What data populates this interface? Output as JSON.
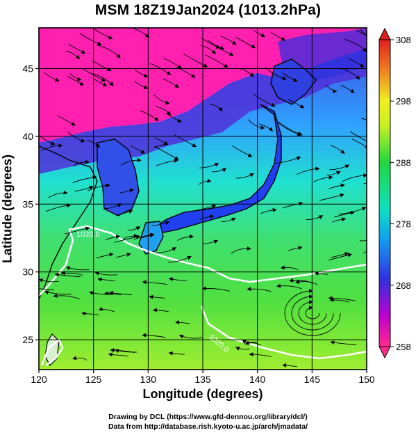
{
  "title": "MSM 18Z19Jan2024 (1013.2hPa)",
  "map": {
    "xlabel": "Longitude (degrees)",
    "ylabel": "Latitude  (degrees)",
    "lon_range": [
      120,
      150
    ],
    "lat_range": [
      22.8,
      48
    ],
    "lon_ticks": [
      "120",
      "125",
      "130",
      "135",
      "140",
      "145",
      "150"
    ],
    "lat_ticks": [
      "25",
      "30",
      "35",
      "40",
      "45"
    ],
    "contour_labels": [
      "1020.0",
      "1020.0"
    ],
    "gridlines": true
  },
  "colorbar": {
    "range": [
      258,
      308
    ],
    "tick_labels": [
      "308",
      "298",
      "288",
      "278",
      "268",
      "258"
    ],
    "colors": [
      "#ff2a8a",
      "#c000d0",
      "#3030e0",
      "#10b0f0",
      "#10e0c0",
      "#20d840",
      "#c8f020",
      "#f0f020",
      "#f08020",
      "#e02020"
    ]
  },
  "credits": {
    "line1": "Drawing by DCL (https://www.gfd-dennou.org/library/dcl/)",
    "line2": "Data from http://database.rish.kyoto-u.ac.jp/arch/jmadata/"
  }
}
